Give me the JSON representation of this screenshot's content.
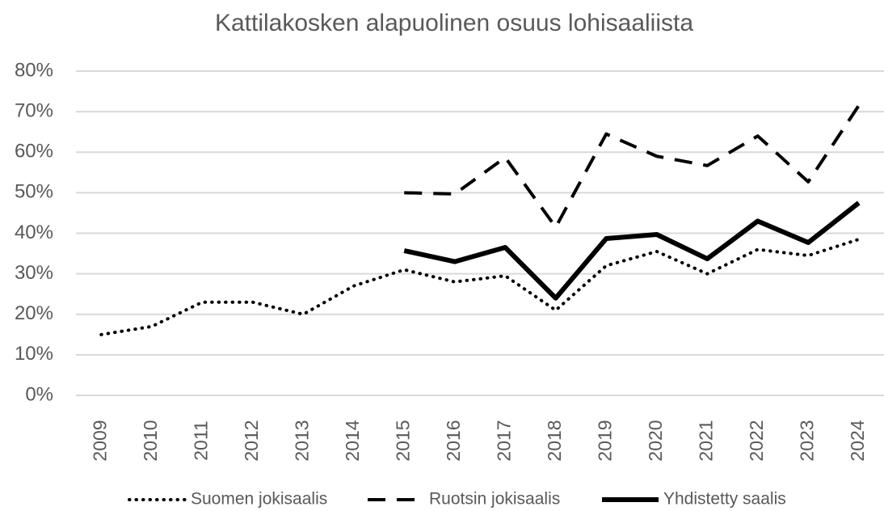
{
  "chart_data": {
    "type": "line",
    "title": "Kattilakosken alapuolinen osuus lohisaaliista",
    "categories": [
      "2009",
      "2010",
      "2011",
      "2012",
      "2013",
      "2014",
      "2015",
      "2016",
      "2017",
      "2018",
      "2019",
      "2020",
      "2021",
      "2022",
      "2023",
      "2024"
    ],
    "series": [
      {
        "name": "Suomen jokisaalis",
        "color": "#000000",
        "style": "dotted",
        "values": [
          15,
          17,
          23,
          23,
          20,
          27,
          31,
          28,
          29.5,
          21,
          32,
          35.5,
          30,
          36,
          34.5,
          38.5
        ]
      },
      {
        "name": "Ruotsin jokisaalis",
        "color": "#000000",
        "style": "dashed",
        "values": [
          null,
          null,
          null,
          null,
          null,
          null,
          50,
          49.7,
          58.7,
          41.5,
          64.5,
          59,
          56.7,
          64,
          52.7,
          71.5
        ]
      },
      {
        "name": "Yhdistetty saalis",
        "color": "#000000",
        "style": "solid",
        "values": [
          null,
          null,
          null,
          null,
          null,
          null,
          35.7,
          33,
          36.5,
          24,
          38.7,
          39.7,
          33.7,
          43,
          37.7,
          47.5
        ]
      }
    ],
    "ylim": [
      0,
      80
    ],
    "yticks": [
      {
        "value": 0,
        "label": "0%"
      },
      {
        "value": 10,
        "label": "10%"
      },
      {
        "value": 20,
        "label": "20%"
      },
      {
        "value": 30,
        "label": "30%"
      },
      {
        "value": 40,
        "label": "40%"
      },
      {
        "value": 50,
        "label": "50%"
      },
      {
        "value": 60,
        "label": "60%"
      },
      {
        "value": 70,
        "label": "70%"
      },
      {
        "value": 80,
        "label": "80%"
      }
    ],
    "grid": true,
    "legend": "bottom"
  }
}
